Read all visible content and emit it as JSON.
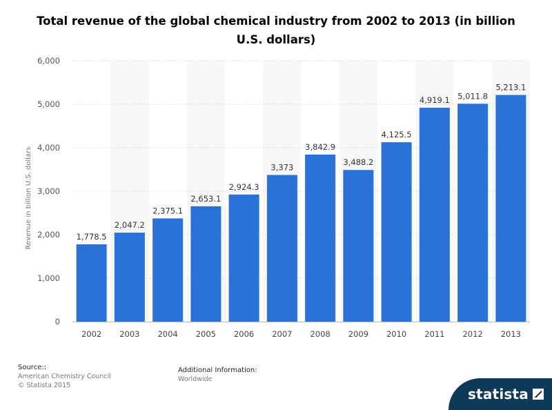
{
  "chart_data": {
    "type": "bar",
    "title": "Total revenue of the global chemical industry from 2002 to 2013 (in billion U.S. dollars)",
    "categories": [
      "2002",
      "2003",
      "2004",
      "2005",
      "2006",
      "2007",
      "2008",
      "2009",
      "2010",
      "2011",
      "2012",
      "2013"
    ],
    "values": [
      1778.5,
      2047.2,
      2375.1,
      2653.1,
      2924.3,
      3373,
      3842.9,
      3488.2,
      4125.5,
      4919.1,
      5011.8,
      5213.1
    ],
    "value_labels": [
      "1,778.5",
      "2,047.2",
      "2,375.1",
      "2,653.1",
      "2,924.3",
      "3,373",
      "3,842.9",
      "3,488.2",
      "4,125.5",
      "4,919.1",
      "5,011.8",
      "5,213.1"
    ],
    "xlabel": "",
    "ylabel": "Revenue in billion U.S. dollars",
    "ylim": [
      0,
      6000
    ],
    "yticks": [
      0,
      1000,
      2000,
      3000,
      4000,
      5000,
      6000
    ],
    "ytick_labels": [
      "0",
      "1,000",
      "2,000",
      "3,000",
      "4,000",
      "5,000",
      "6,000"
    ],
    "grid": true,
    "bar_color": "#2a72d8"
  },
  "footer": {
    "source_heading": "Source::",
    "source_lines": [
      "American Chemistry Council",
      "© Statista 2015"
    ],
    "additional_heading": "Additional Information:",
    "additional_value": "Worldwide",
    "logo_text": "statista"
  }
}
